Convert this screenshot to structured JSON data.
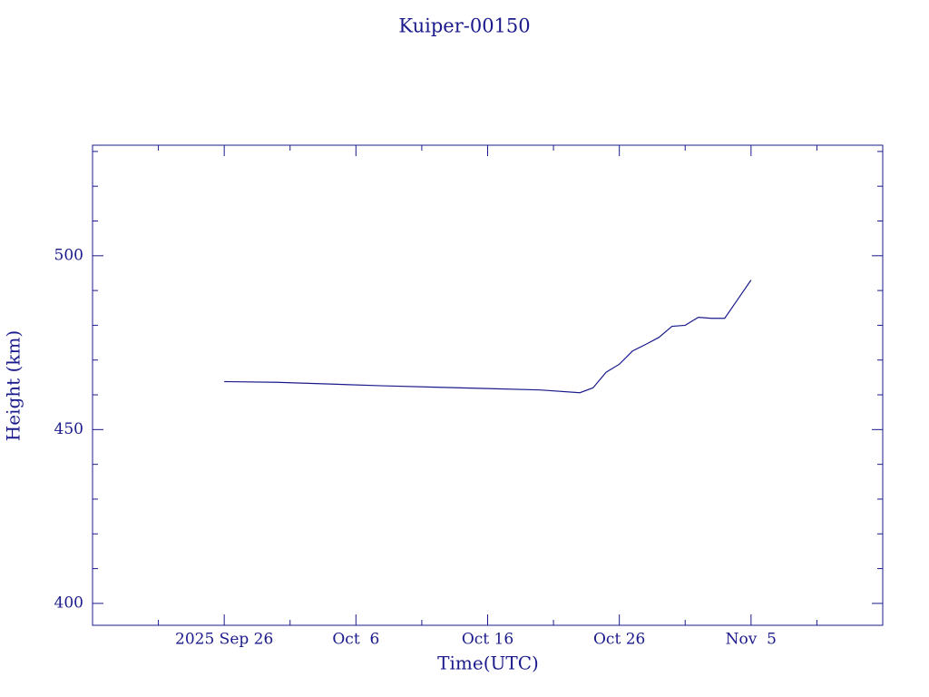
{
  "chart_data": {
    "type": "line",
    "title": "Kuiper-00150",
    "x_label": "Time(UTC)",
    "y_label": "Height (km)",
    "color": "#1a1a8c",
    "x": [
      "2025-09-26",
      "2025-09-30",
      "2025-10-04",
      "2025-10-08",
      "2025-10-12",
      "2025-10-16",
      "2025-10-20",
      "2025-10-23",
      "2025-10-24",
      "2025-10-25",
      "2025-10-26",
      "2025-10-27",
      "2025-10-28",
      "2025-10-29",
      "2025-10-30",
      "2025-10-31",
      "2025-11-01",
      "2025-11-02",
      "2025-11-03",
      "2025-11-04",
      "2025-11-05"
    ],
    "values": [
      463.8,
      463.6,
      463.1,
      462.6,
      462.2,
      461.8,
      461.4,
      460.6,
      462,
      466.5,
      468.8,
      472.6,
      474.5,
      476.5,
      479.7,
      480,
      482.3,
      482,
      482,
      487.5,
      493
    ],
    "xlim": [
      "2025-09-16",
      "2025-11-15"
    ],
    "xticks": [
      {
        "value": "2025-09-26",
        "label": "2025 Sep 26"
      },
      {
        "value": "2025-10-06",
        "label": "Oct  6"
      },
      {
        "value": "2025-10-16",
        "label": "Oct 16"
      },
      {
        "value": "2025-10-26",
        "label": "Oct 26"
      },
      {
        "value": "2025-11-05",
        "label": "Nov  5"
      }
    ],
    "xminorticks": [
      "2025-09-21",
      "2025-10-01",
      "2025-10-11",
      "2025-10-21",
      "2025-10-31",
      "2025-11-10"
    ],
    "ylim": [
      393.7,
      531.8
    ],
    "yticks": [
      400,
      450,
      500
    ],
    "yminorticks": [
      410,
      420,
      430,
      440,
      460,
      470,
      480,
      490,
      510,
      520,
      530
    ]
  }
}
